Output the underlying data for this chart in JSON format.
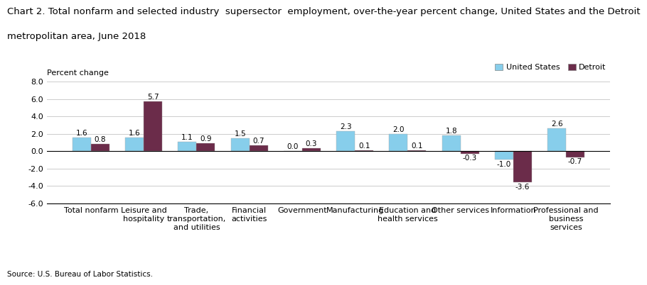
{
  "title_line1": "Chart 2. Total nonfarm and selected industry  supersector  employment, over-the-year percent change, United States and the Detroit",
  "title_line2": "metropolitan area, June 2018",
  "ylabel": "Percent change",
  "source": "Source: U.S. Bureau of Labor Statistics.",
  "categories": [
    "Total nonfarm",
    "Leisure and\nhospitality",
    "Trade,\ntransportation,\nand utilities",
    "Financial\nactivities",
    "Government",
    "Manufacturing",
    "Education and\nhealth services",
    "Other services",
    "Information",
    "Professional and\nbusiness\nservices"
  ],
  "us_values": [
    1.6,
    1.6,
    1.1,
    1.5,
    0.0,
    2.3,
    2.0,
    1.8,
    -1.0,
    2.6
  ],
  "detroit_values": [
    0.8,
    5.7,
    0.9,
    0.7,
    0.3,
    0.1,
    0.1,
    -0.3,
    -3.6,
    -0.7
  ],
  "us_color": "#87CEEB",
  "detroit_color": "#6B2C4A",
  "ylim": [
    -6.0,
    8.0
  ],
  "yticks": [
    -6.0,
    -4.0,
    -2.0,
    0.0,
    2.0,
    4.0,
    6.0,
    8.0
  ],
  "bar_width": 0.35,
  "legend_us": "United States",
  "legend_detroit": "Detroit",
  "title_fontsize": 9.5,
  "axis_fontsize": 8,
  "tick_fontsize": 8,
  "label_fontsize": 7.5,
  "background_color": "#ffffff"
}
